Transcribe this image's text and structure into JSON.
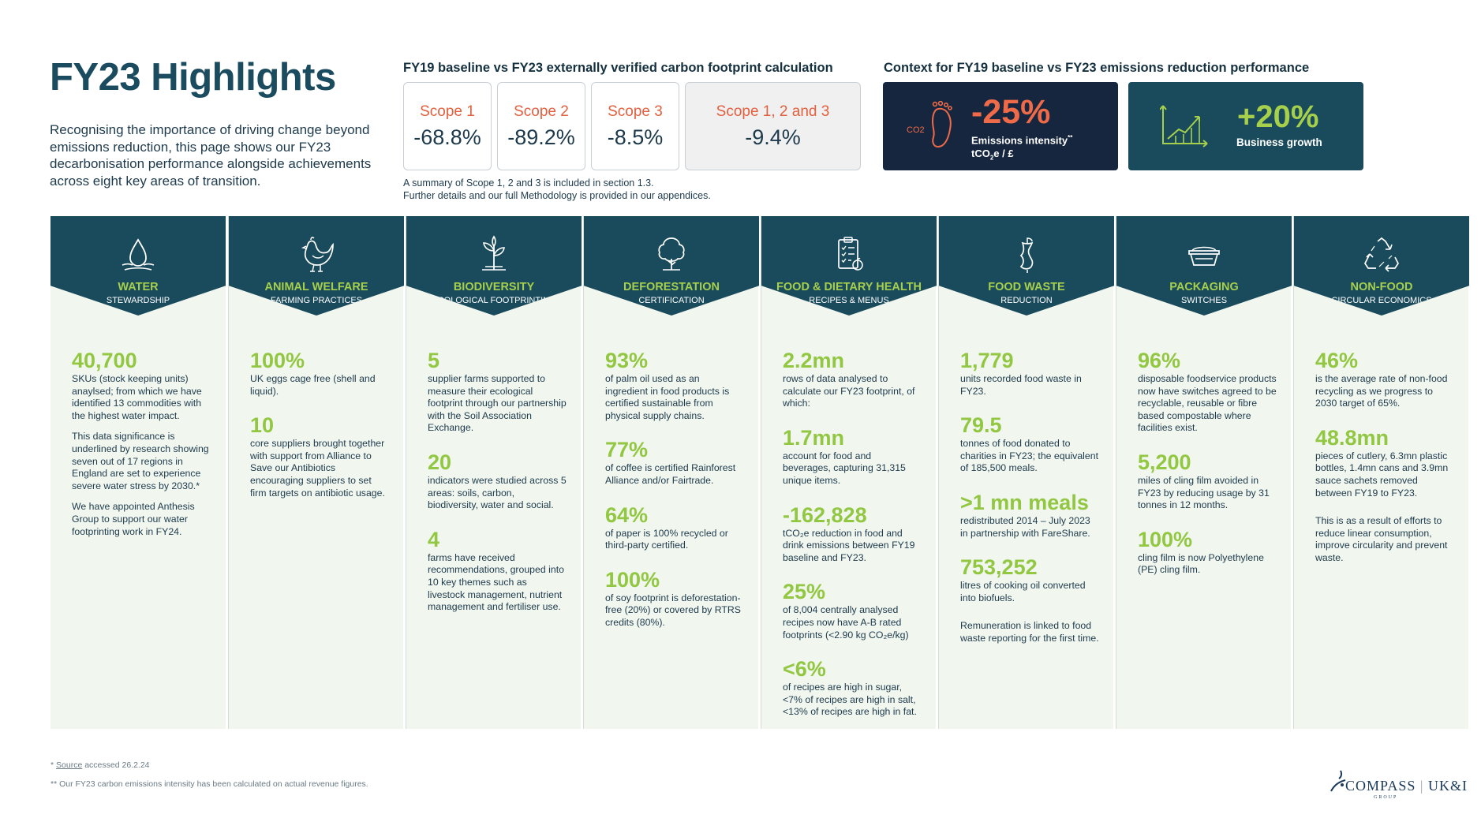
{
  "title": "FY23 Highlights",
  "intro": "Recognising the importance of driving change beyond emissions reduction, this page shows our FY23 decarbonisation performance alongside achievements across eight key areas of transition.",
  "scopes": {
    "heading": "FY19 baseline vs FY23 externally verified carbon footprint calculation",
    "items": [
      {
        "label": "Scope 1",
        "value": "-68.8%"
      },
      {
        "label": "Scope 2",
        "value": "-89.2%"
      },
      {
        "label": "Scope 3",
        "value": "-8.5%"
      },
      {
        "label": "Scope 1, 2 and 3",
        "value": "-9.4%"
      }
    ],
    "note_1": "A summary of Scope 1, 2 and 3 is included in section 1.3.",
    "note_2": "Further details and our full Methodology is provided in our appendices."
  },
  "context": {
    "heading": "Context for FY19 baseline vs FY23 emissions reduction performance",
    "emissions": {
      "value": "-25%",
      "label_1": "Emissions intensity",
      "label_1_sup": "**",
      "label_2": "tCO",
      "label_2_sub": "2",
      "label_2_end": "e / £",
      "icon_text": "CO2"
    },
    "growth": {
      "value": "+20%",
      "label": "Business growth"
    }
  },
  "columns": [
    {
      "title": "WATER",
      "subtitle": "STEWARDSHIP",
      "icon": "water-drop-icon",
      "body": [
        {
          "stat": "40,700",
          "desc": "SKUs (stock keeping units) anaylsed; from which we have identified 13 commodities with the highest water impact."
        },
        {
          "stat": "",
          "desc": "This data significance is underlined by research showing seven out of 17 regions in England are set to experience severe water stress by 2030.*"
        },
        {
          "stat": "",
          "desc": "We have appointed Anthesis Group to support our water footprinting work in FY24."
        }
      ]
    },
    {
      "title": "ANIMAL WELFARE",
      "subtitle": "FARMING PRACTICES",
      "icon": "chicken-icon",
      "body": [
        {
          "stat": "100%",
          "desc": "UK eggs cage free (shell and liquid)."
        },
        {
          "stat": "10",
          "desc": "core suppliers brought together with support from Alliance to Save our Antibiotics encouraging suppliers to set firm targets on antibiotic usage."
        }
      ]
    },
    {
      "title": "BIODIVERSITY",
      "subtitle": "ECOLOGICAL FOOTPRINTING",
      "icon": "plant-icon",
      "body": [
        {
          "stat": "5",
          "desc": "supplier farms supported to measure their ecological footprint through our partnership with the Soil Association Exchange."
        },
        {
          "stat": "20",
          "desc": "indicators were studied across 5 areas: soils, carbon, biodiversity, water and social."
        },
        {
          "stat": "4",
          "desc": "farms have received recommendations, grouped into 10 key themes such as livestock management, nutrient management and fertiliser use."
        }
      ]
    },
    {
      "title": "DEFORESTATION",
      "subtitle": "CERTIFICATION",
      "icon": "tree-icon",
      "body": [
        {
          "stat": "93%",
          "desc": "of palm oil used as an ingredient in food products is certified sustainable from physical supply chains."
        },
        {
          "stat": "77%",
          "desc": "of coffee is certified Rainforest Alliance and/or Fairtrade."
        },
        {
          "stat": "64%",
          "desc": "of paper is 100% recycled or third-party certified."
        },
        {
          "stat": "100%",
          "desc": "of soy footprint is deforestation-free (20%) or covered by RTRS credits (80%)."
        }
      ]
    },
    {
      "title": "FOOD & DIETARY HEALTH",
      "subtitle": "RECIPES & MENUS",
      "icon": "recipe-checklist-icon",
      "body": [
        {
          "stat": "2.2mn",
          "desc": "rows of data analysed to calculate our FY23 footprint, of which:"
        },
        {
          "stat": "1.7mn",
          "desc": "account for food and beverages, capturing 31,315 unique items."
        },
        {
          "stat": "-162,828",
          "desc": "tCO₂e reduction in food and drink emissions between FY19 baseline and FY23."
        },
        {
          "stat": "25%",
          "desc": "of 8,004 centrally analysed recipes now have A-B rated footprints (<2.90 kg CO₂e/kg)"
        },
        {
          "stat": "<6%",
          "desc": "of recipes are high in sugar, <7% of recipes are high in salt, <13% of recipes are high in fat."
        }
      ]
    },
    {
      "title": "FOOD WASTE",
      "subtitle": "REDUCTION",
      "icon": "apple-core-icon",
      "body": [
        {
          "stat": "1,779",
          "desc": "units recorded food waste in FY23."
        },
        {
          "stat": "79.5",
          "desc": "tonnes of food donated to charities in FY23; the equivalent of 185,500 meals."
        },
        {
          "stat": ">1 mn meals",
          "desc": "redistributed 2014 – July 2023 in partnership with FareShare."
        },
        {
          "stat": "753,252",
          "desc": "litres of cooking oil converted into biofuels."
        },
        {
          "stat": "",
          "desc": "Remuneration is linked to food waste reporting for the first time."
        }
      ]
    },
    {
      "title": "PACKAGING",
      "subtitle": "SWITCHES",
      "icon": "food-container-icon",
      "body": [
        {
          "stat": "96%",
          "desc": "disposable foodservice products now have switches agreed to be recyclable, reusable or fibre based compostable where facilities exist."
        },
        {
          "stat": "5,200",
          "desc": "miles of cling film avoided in FY23 by reducing usage by 31 tonnes in 12 months."
        },
        {
          "stat": "100%",
          "desc": "cling film is now Polyethylene (PE) cling film."
        }
      ]
    },
    {
      "title": "NON-FOOD",
      "subtitle": "CIRCULAR ECONOMICS",
      "icon": "recycle-icon",
      "body": [
        {
          "stat": "46%",
          "desc": "is the average rate of non-food recycling as we progress to 2030 target of 65%."
        },
        {
          "stat": "48.8mn",
          "desc": "pieces of cutlery, 6.3mn plastic bottles, 1.4mn cans and 3.9mn sauce sachets removed between FY19 to FY23."
        },
        {
          "stat": "",
          "desc": "This is as a result of efforts to reduce linear consumption, improve circularity and prevent waste."
        }
      ]
    }
  ],
  "footnotes": {
    "f1_mark": "*",
    "f1_link": "Source",
    "f1_text": "accessed 26.2.24",
    "f2": "** Our FY23 carbon emissions intensity has been calculated on actual revenue figures."
  },
  "logo": {
    "name": "COMPASS",
    "region": "UK&I",
    "group": "GROUP"
  },
  "colors": {
    "navy": "#15263e",
    "teal": "#1a4b5c",
    "green": "#92c741",
    "orange": "#e2603f",
    "panel": "#f1f6ef"
  }
}
